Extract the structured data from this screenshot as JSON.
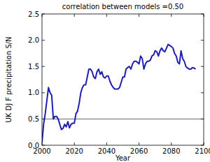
{
  "chart_data": {
    "type": "line",
    "title": "correlation between models =0.50",
    "x_label": "Year",
    "y_label": "UK DJ F precipitation S/N",
    "x": [
      2000,
      2001,
      2002,
      2003,
      2004,
      2005,
      2006,
      2007,
      2008,
      2009,
      2010,
      2011,
      2012,
      2013,
      2014,
      2015,
      2016,
      2017,
      2018,
      2019,
      2020,
      2021,
      2022,
      2023,
      2024,
      2025,
      2026,
      2027,
      2028,
      2029,
      2030,
      2031,
      2032,
      2033,
      2034,
      2035,
      2036,
      2037,
      2038,
      2039,
      2040,
      2041,
      2042,
      2043,
      2044,
      2045,
      2046,
      2047,
      2048,
      2049,
      2050,
      2051,
      2052,
      2053,
      2054,
      2055,
      2056,
      2057,
      2058,
      2059,
      2060,
      2061,
      2062,
      2063,
      2064,
      2065,
      2066,
      2067,
      2068,
      2069,
      2070,
      2071,
      2072,
      2073,
      2074,
      2075,
      2076,
      2077,
      2078,
      2079,
      2080,
      2081,
      2082,
      2083,
      2084,
      2085,
      2086,
      2087,
      2088,
      2089,
      2090,
      2091,
      2092,
      2093,
      2094,
      2095
    ],
    "series": [
      {
        "name": "S/N",
        "color": "#1f1fb0",
        "values": [
          0.05,
          0.4,
          0.6,
          0.85,
          1.1,
          1.0,
          0.95,
          0.5,
          0.55,
          0.55,
          0.5,
          0.4,
          0.3,
          0.32,
          0.4,
          0.35,
          0.45,
          0.33,
          0.4,
          0.42,
          0.42,
          0.6,
          0.65,
          0.8,
          1.0,
          1.1,
          1.15,
          1.15,
          1.3,
          1.45,
          1.45,
          1.4,
          1.3,
          1.27,
          1.4,
          1.45,
          1.35,
          1.4,
          1.3,
          1.28,
          1.32,
          1.32,
          1.22,
          1.15,
          1.1,
          1.07,
          1.07,
          1.07,
          1.1,
          1.2,
          1.3,
          1.3,
          1.45,
          1.48,
          1.5,
          1.45,
          1.55,
          1.6,
          1.6,
          1.58,
          1.55,
          1.7,
          1.65,
          1.45,
          1.55,
          1.6,
          1.6,
          1.62,
          1.7,
          1.72,
          1.8,
          1.78,
          1.7,
          1.8,
          1.85,
          1.8,
          1.78,
          1.85,
          1.92,
          1.9,
          1.88,
          1.85,
          1.75,
          1.7,
          1.58,
          1.55,
          1.8,
          1.65,
          1.6,
          1.5,
          1.47,
          1.45,
          1.45,
          1.48,
          1.47,
          1.45
        ]
      }
    ],
    "hline": 0.5,
    "xlim": [
      2000,
      2100
    ],
    "xticks": [
      2000,
      2020,
      2040,
      2060,
      2080,
      2100
    ],
    "ylim": [
      0,
      2.5
    ],
    "yticks": [
      {
        "value": 0,
        "label": "0.0"
      },
      {
        "value": 0.5,
        "label": "0.5"
      },
      {
        "value": 1,
        "label": "1.0"
      },
      {
        "value": 1.5,
        "label": "1.5"
      },
      {
        "value": 2,
        "label": "2.0"
      },
      {
        "value": 2.5,
        "label": "2.5"
      }
    ],
    "grid": false
  }
}
